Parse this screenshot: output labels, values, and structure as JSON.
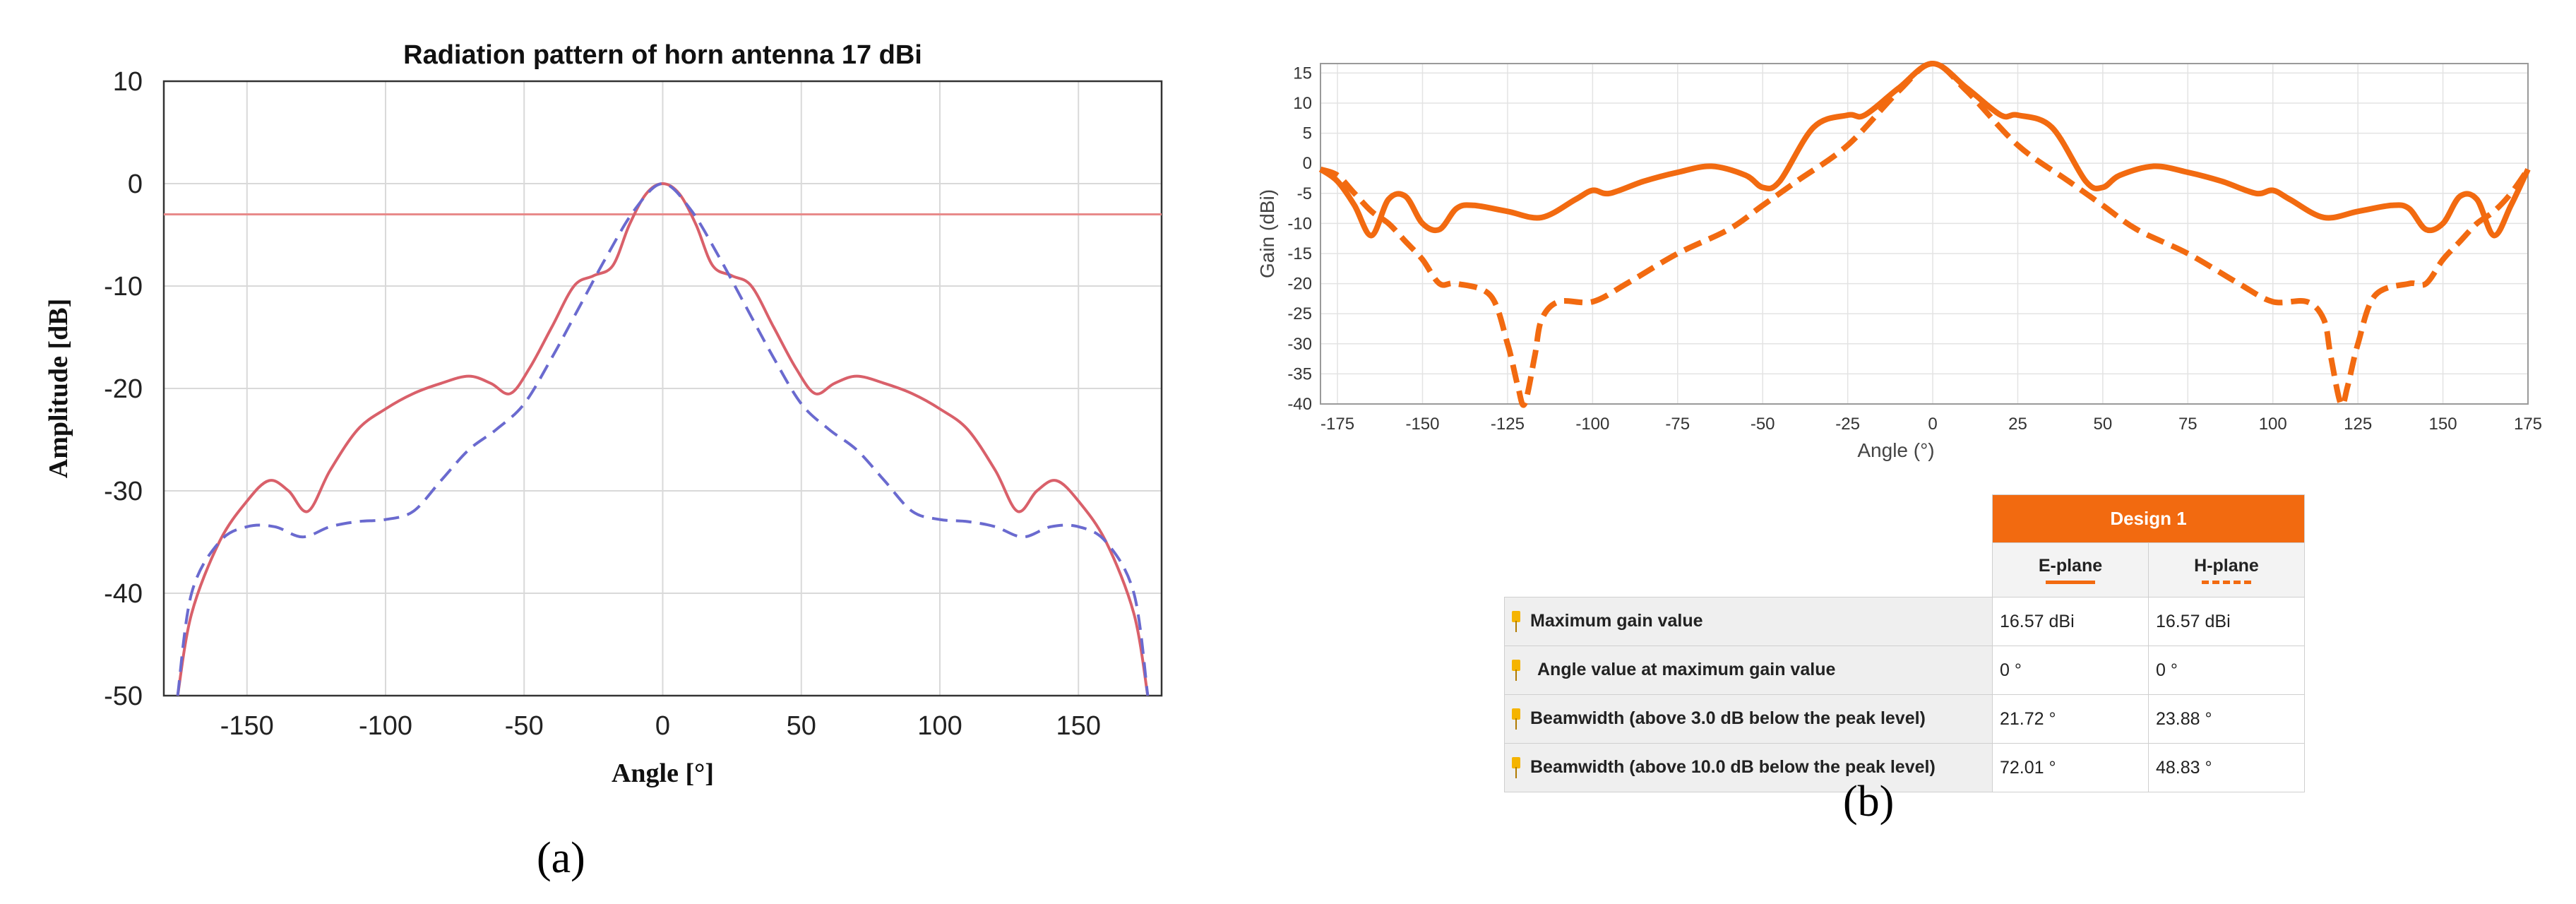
{
  "chart_data": [
    {
      "type": "line",
      "panel": "(a)",
      "title": "Radiation pattern of horn antenna 17 dBi",
      "xlabel": "Angle [°]",
      "ylabel": "Amplitude [dB]",
      "xlim": [
        -180,
        180
      ],
      "ylim": [
        -50,
        10
      ],
      "xticks": [
        -150,
        -100,
        -50,
        0,
        50,
        100,
        150
      ],
      "yticks": [
        10,
        0,
        -10,
        -20,
        -30,
        -40,
        -50
      ],
      "grid": true,
      "reference_line": {
        "y": -3,
        "color": "#e88a8a"
      },
      "series": [
        {
          "style": "solid",
          "color": "#d9606a",
          "x": [
            -175,
            -170,
            -160,
            -150,
            -142,
            -135,
            -128,
            -120,
            -110,
            -100,
            -90,
            -80,
            -70,
            -62,
            -55,
            -48,
            -40,
            -32,
            -25,
            -18,
            -12,
            -6,
            0,
            6,
            12,
            18,
            25,
            32,
            40,
            48,
            55,
            62,
            70,
            80,
            90,
            100,
            110,
            120,
            128,
            135,
            142,
            150,
            160,
            170,
            175
          ],
          "y": [
            -50,
            -42,
            -35,
            -31,
            -29,
            -30,
            -32,
            -28,
            -24,
            -22,
            -20.5,
            -19.5,
            -18.8,
            -19.5,
            -20.5,
            -18,
            -14,
            -10,
            -9,
            -8,
            -4,
            -1,
            0,
            -1,
            -4,
            -8,
            -9,
            -10,
            -14,
            -18,
            -20.5,
            -19.5,
            -18.8,
            -19.5,
            -20.5,
            -22,
            -24,
            -28,
            -32,
            -30,
            -29,
            -31,
            -35,
            -42,
            -50
          ]
        },
        {
          "style": "dashed",
          "color": "#6a6acf",
          "x": [
            -175,
            -170,
            -160,
            -150,
            -140,
            -130,
            -120,
            -110,
            -100,
            -90,
            -80,
            -70,
            -60,
            -50,
            -40,
            -30,
            -20,
            -10,
            0,
            10,
            20,
            30,
            40,
            50,
            60,
            70,
            80,
            90,
            100,
            110,
            120,
            130,
            140,
            150,
            160,
            170,
            175
          ],
          "y": [
            -50,
            -40,
            -35,
            -33.5,
            -33.5,
            -34.5,
            -33.5,
            -33,
            -32.8,
            -32,
            -29,
            -26,
            -24,
            -21.5,
            -17,
            -12,
            -7,
            -2.5,
            0,
            -2.5,
            -7,
            -12,
            -17,
            -21.5,
            -24,
            -26,
            -29,
            -32,
            -32.8,
            -33,
            -33.5,
            -34.5,
            -33.5,
            -33.5,
            -35,
            -40,
            -50
          ]
        }
      ]
    },
    {
      "type": "line",
      "panel": "(b)",
      "title": "",
      "xlabel": "Angle (°)",
      "ylabel": "Gain (dBi)",
      "xlim": [
        -180,
        175
      ],
      "ylim": [
        -40,
        16.57
      ],
      "xticks": [
        -175,
        -150,
        -125,
        -100,
        -75,
        -50,
        -25,
        0,
        25,
        50,
        75,
        100,
        125,
        150,
        175
      ],
      "yticks": [
        15,
        10,
        5,
        0,
        -5,
        -10,
        -15,
        -20,
        -25,
        -30,
        -35,
        -40
      ],
      "grid": true,
      "series": [
        {
          "name": "E-plane",
          "style": "solid",
          "color": "#f26a10",
          "x": [
            -180,
            -175,
            -170,
            -165,
            -160,
            -155,
            -150,
            -145,
            -140,
            -135,
            -125,
            -115,
            -105,
            -100,
            -95,
            -85,
            -75,
            -65,
            -55,
            -50,
            -45,
            -35,
            -25,
            -20,
            -10,
            0,
            10,
            20,
            25,
            35,
            45,
            50,
            55,
            65,
            75,
            85,
            95,
            100,
            105,
            115,
            125,
            135,
            140,
            145,
            150,
            155,
            160,
            165,
            170,
            175
          ],
          "y": [
            -1,
            -3,
            -7,
            -12,
            -6,
            -5.5,
            -10,
            -11,
            -7.5,
            -7,
            -8,
            -9,
            -6,
            -4.5,
            -5,
            -3,
            -1.5,
            -0.5,
            -2,
            -4,
            -3,
            6,
            8,
            8,
            12.5,
            16.57,
            12.5,
            8,
            8,
            6,
            -3,
            -4,
            -2,
            -0.5,
            -1.5,
            -3,
            -5,
            -4.5,
            -6,
            -9,
            -8,
            -7,
            -7.5,
            -11,
            -10,
            -5.5,
            -6,
            -12,
            -7,
            -1
          ]
        },
        {
          "name": "H-plane",
          "style": "dashed",
          "color": "#f26a10",
          "x": [
            -180,
            -175,
            -170,
            -165,
            -160,
            -155,
            -150,
            -145,
            -140,
            -130,
            -125,
            -122,
            -120,
            -117,
            -115,
            -110,
            -100,
            -90,
            -75,
            -60,
            -50,
            -40,
            -25,
            -10,
            0,
            10,
            25,
            40,
            50,
            60,
            75,
            90,
            100,
            110,
            115,
            117,
            120,
            122,
            125,
            130,
            140,
            145,
            150,
            155,
            160,
            165,
            170,
            175
          ],
          "y": [
            -1,
            -2,
            -5,
            -8,
            -10,
            -13,
            -16,
            -20,
            -20,
            -22,
            -30,
            -37,
            -40,
            -32,
            -26,
            -23,
            -23,
            -20,
            -15,
            -11,
            -7,
            -3,
            3,
            12,
            16.57,
            12,
            3,
            -3,
            -7,
            -11,
            -15,
            -20,
            -23,
            -23,
            -26,
            -32,
            -40,
            -37,
            -30,
            -22,
            -20,
            -20,
            -16,
            -13,
            -10,
            -8,
            -5,
            -1
          ]
        }
      ]
    }
  ],
  "panel_a": {
    "caption": "(a)",
    "yticks_labels": [
      "10",
      "0",
      "-10",
      "-20",
      "-30",
      "-40",
      "-50"
    ],
    "xticks_labels": [
      "-150",
      "-100",
      "-50",
      "0",
      "50",
      "100",
      "150"
    ]
  },
  "panel_b": {
    "caption": "(b)",
    "table": {
      "design_header": "Design 1",
      "columns": [
        "E-plane",
        "H-plane"
      ],
      "rows": [
        {
          "label": "Maximum gain value",
          "e": "16.57 dBi",
          "h": "16.57 dBi"
        },
        {
          "label": "Angle value at maximum gain value",
          "e": "0 °",
          "h": "0 °"
        },
        {
          "label": "Beamwidth (above 3.0 dB below the peak level)",
          "e": "21.72 °",
          "h": "23.88 °"
        },
        {
          "label": "Beamwidth (above 10.0 dB below the peak level)",
          "e": "72.01 °",
          "h": "48.83 °"
        }
      ]
    },
    "colors": {
      "accent": "#f26a10",
      "table_header": "#f26a10"
    }
  }
}
